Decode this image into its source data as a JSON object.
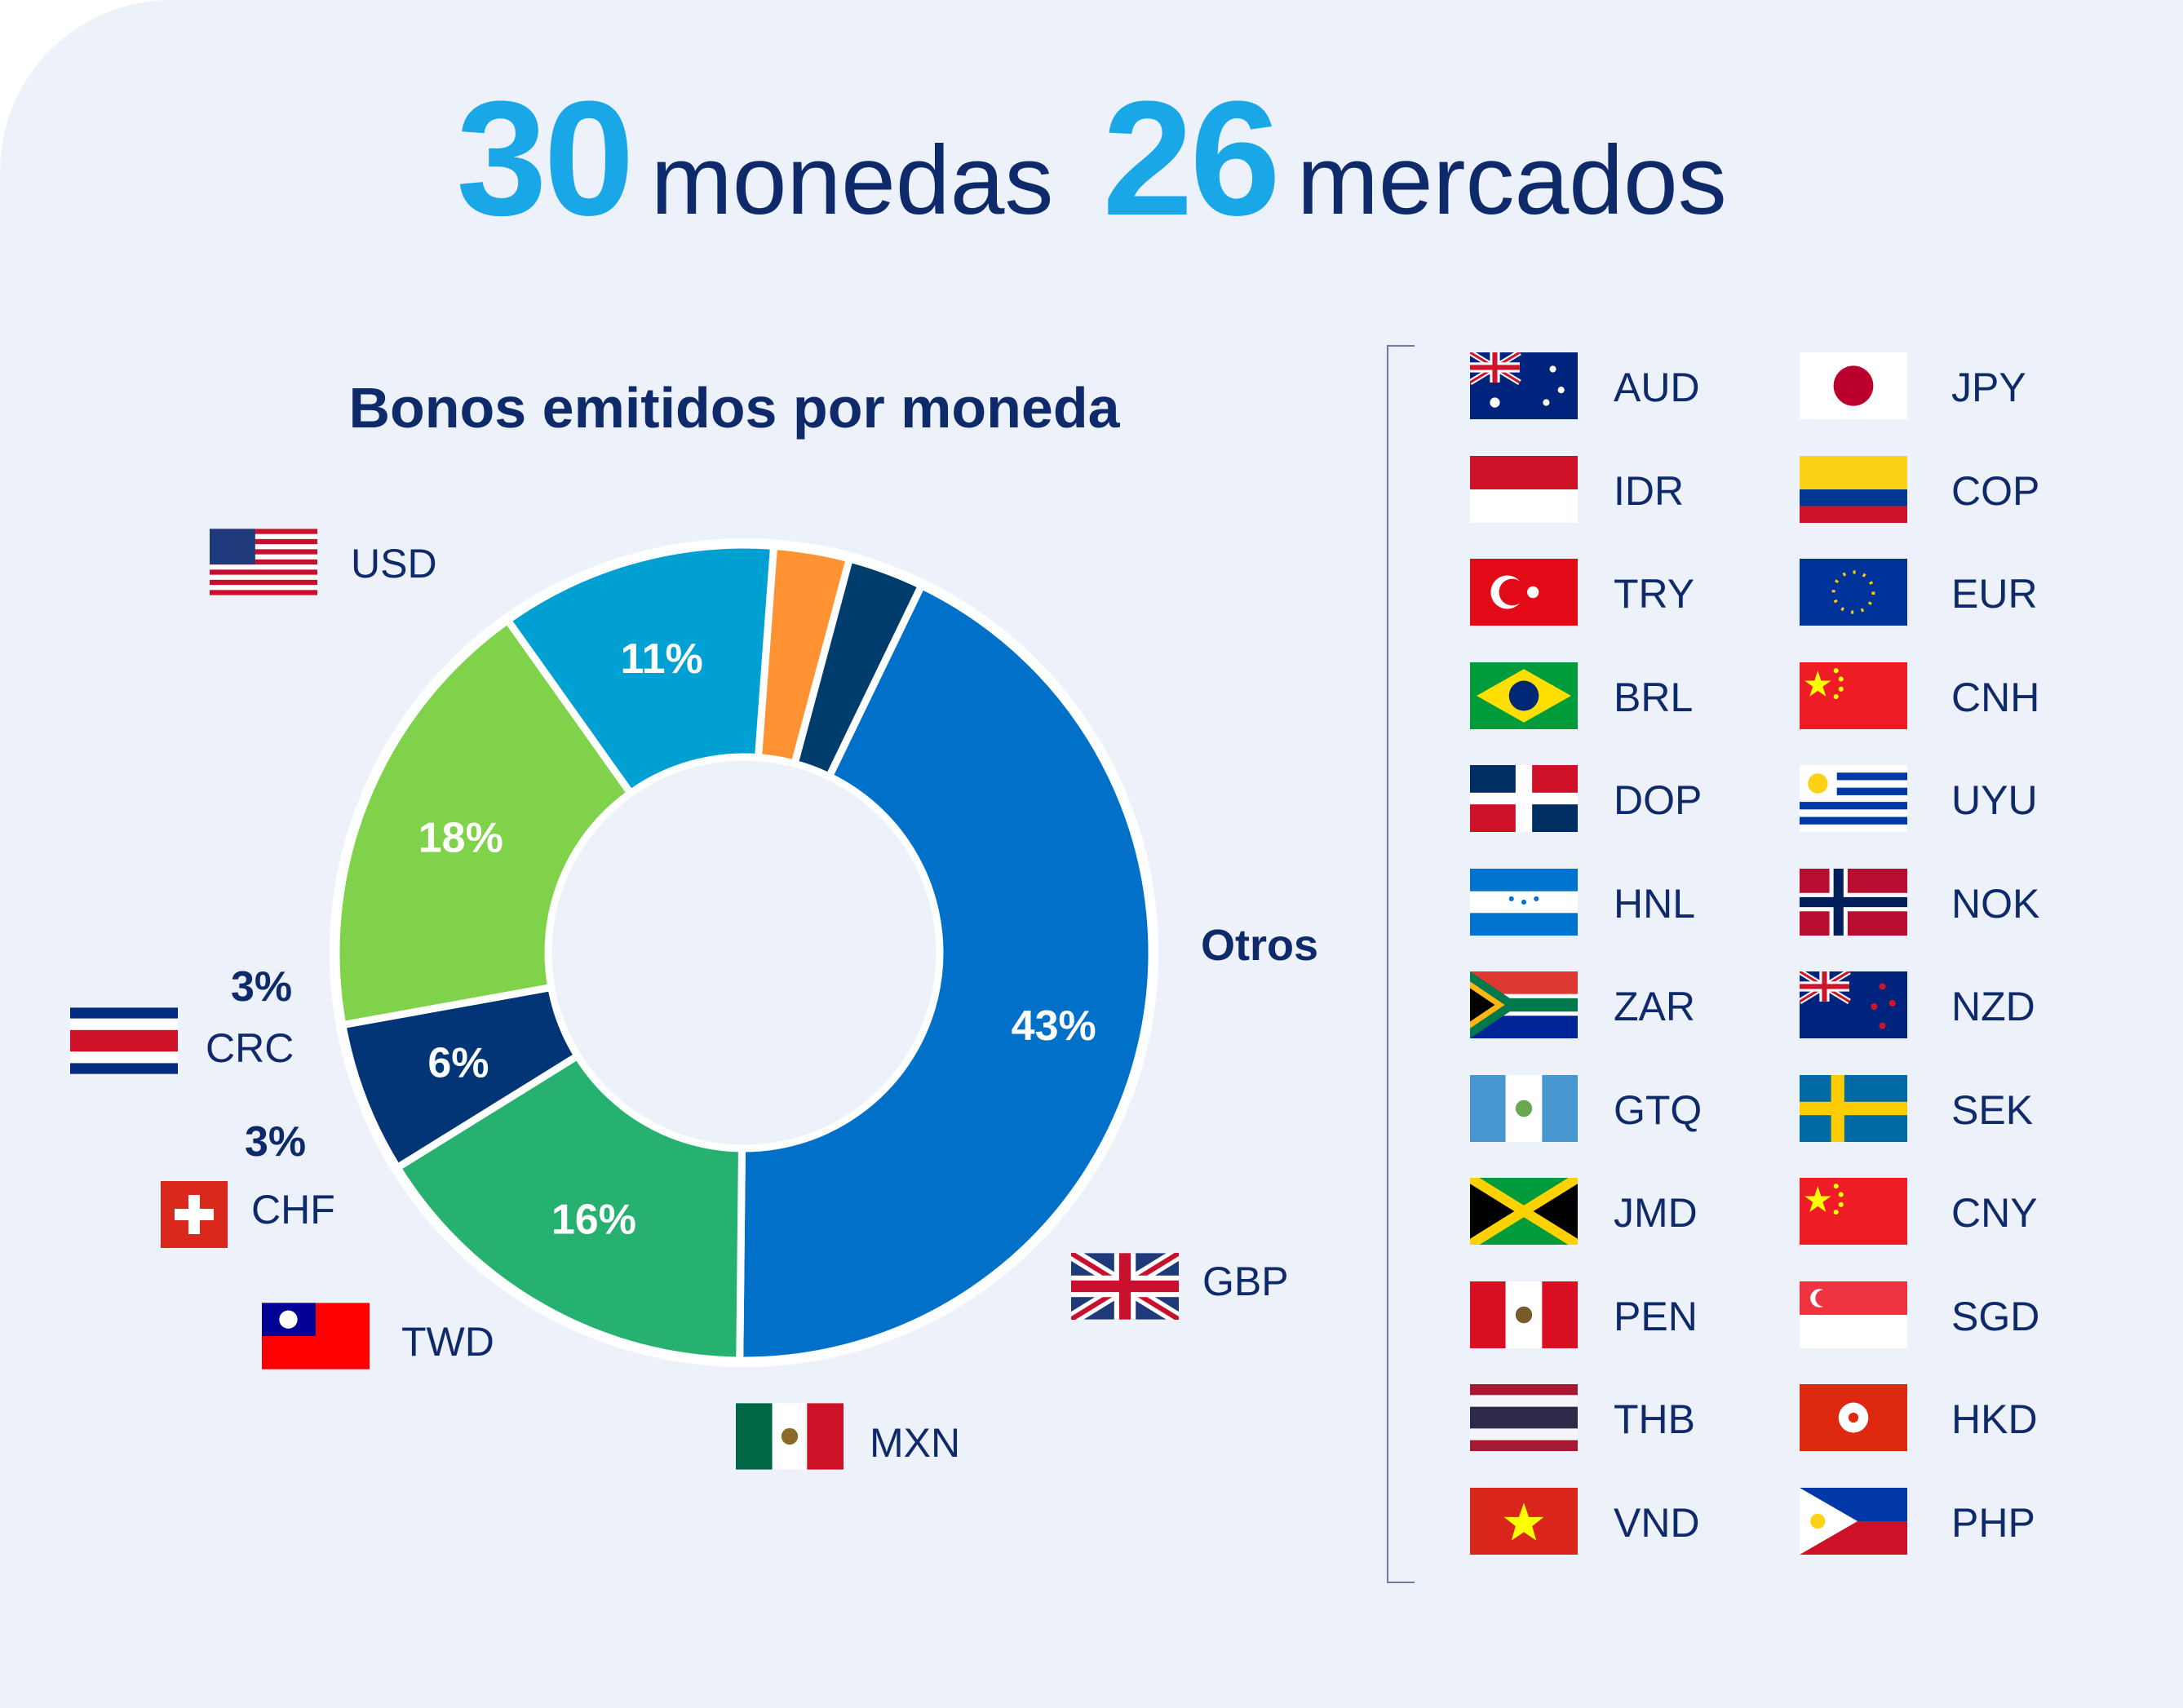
{
  "header": {
    "currencies_count": "30",
    "currencies_word": "monedas",
    "markets_count": "26",
    "markets_word": "mercados"
  },
  "chart_data": {
    "type": "pie",
    "title": "Bonos emitidos por moneda",
    "hole": true,
    "slices": [
      {
        "name": "USD",
        "value": 43,
        "label": "43%",
        "color": "#0070c8"
      },
      {
        "name": "Otros",
        "value": 16,
        "label": "16%",
        "color": "#27b170"
      },
      {
        "name": "GBP",
        "value": 6,
        "label": "6%",
        "color": "#013576"
      },
      {
        "name": "MXN",
        "value": 18,
        "label": "18%",
        "color": "#80d24b"
      },
      {
        "name": "TWD",
        "value": 11,
        "label": "11%",
        "color": "#00a0d2"
      },
      {
        "name": "CHF",
        "value": 3,
        "label": "3%",
        "color": "#ff9232"
      },
      {
        "name": "CRC",
        "value": 3,
        "label": "3%",
        "color": "#003d6c"
      }
    ]
  },
  "slice_labels": {
    "usd": "USD",
    "otros": "Otros",
    "gbp": "GBP",
    "mxn": "MXN",
    "twd": "TWD",
    "chf": "CHF",
    "chf_pct": "3%",
    "crc": "CRC",
    "crc_pct": "3%"
  },
  "currency_list": {
    "left_column": [
      "AUD",
      "IDR",
      "TRY",
      "BRL",
      "DOP",
      "HNL",
      "ZAR",
      "GTQ",
      "JMD",
      "PEN",
      "THB",
      "VND"
    ],
    "right_column": [
      "JPY",
      "COP",
      "EUR",
      "CNH",
      "UYU",
      "NOK",
      "NZD",
      "SEK",
      "CNY",
      "SGD",
      "HKD",
      "PHP"
    ]
  },
  "colors": {
    "background": "#edf1fa",
    "accent": "#1aa7e8",
    "navy": "#0f2a6b"
  }
}
